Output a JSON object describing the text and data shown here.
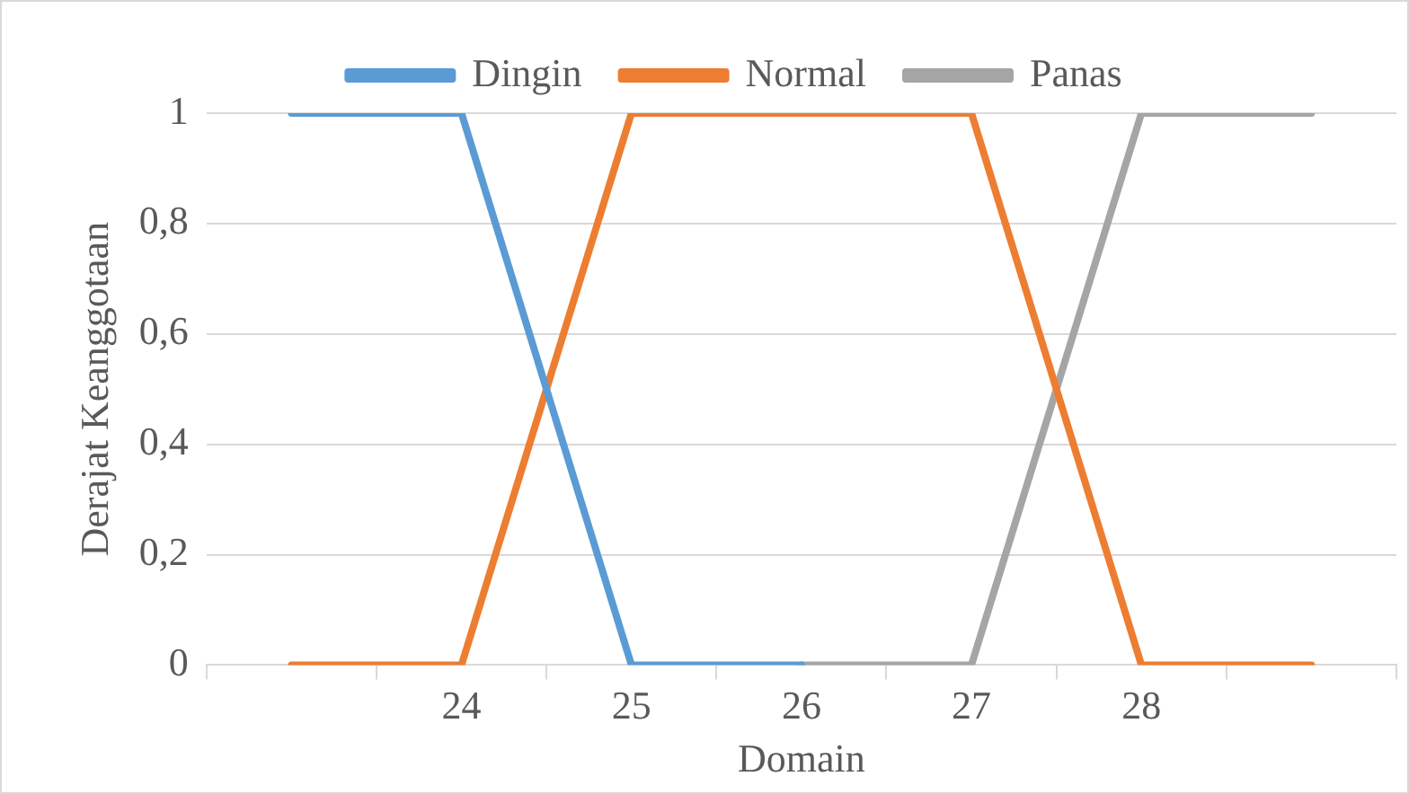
{
  "chart_data": {
    "type": "line",
    "xlabel": "Domain",
    "ylabel": "Derajat Keanggotaan",
    "categories": [
      null,
      "24",
      "25",
      "26",
      "27",
      "28",
      null
    ],
    "series": [
      {
        "name": "Dingin",
        "color": "#5b9bd5",
        "values": [
          1,
          1,
          0,
          0,
          null,
          null,
          null
        ]
      },
      {
        "name": "Normal",
        "color": "#ed7d31",
        "values": [
          0,
          0,
          1,
          1,
          1,
          0,
          0
        ]
      },
      {
        "name": "Panas",
        "color": "#a5a5a5",
        "values": [
          null,
          null,
          null,
          0,
          0,
          1,
          1
        ]
      }
    ],
    "ylim": [
      0,
      1
    ],
    "yticks": [
      0,
      {
        "value": 0.2,
        "label": "0,2"
      },
      {
        "value": 0.4,
        "label": "0,4"
      },
      {
        "value": 0.6,
        "label": "0,6"
      },
      {
        "value": 0.8,
        "label": "0,8"
      },
      1
    ],
    "grid": "y",
    "legend": "top",
    "marker": "none",
    "line_style": "solid"
  }
}
